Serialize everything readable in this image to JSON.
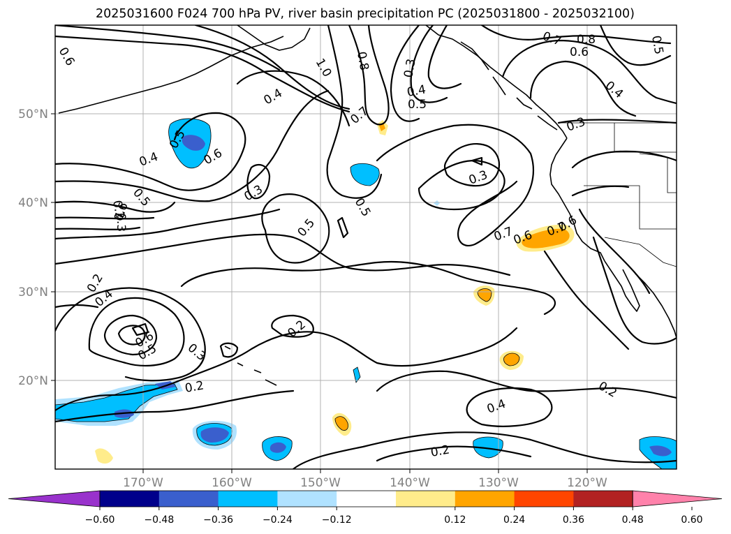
{
  "title": "2025031600 F024 700 hPa PV, river basin precipitation PC (2025031800 - 2025032100)",
  "map": {
    "lon_range": [
      -180,
      -110
    ],
    "lat_range": [
      10,
      60
    ],
    "lon_labels": [
      "170°W",
      "160°W",
      "150°W",
      "140°W",
      "130°W",
      "120°W"
    ],
    "lat_labels": [
      "50°N",
      "40°N",
      "30°N",
      "20°N"
    ]
  },
  "contour_labels": [
    {
      "text": "0.6"
    },
    {
      "text": "0.8"
    },
    {
      "text": "1.0"
    },
    {
      "text": "0.3"
    },
    {
      "text": "0.4"
    },
    {
      "text": "0.5"
    },
    {
      "text": "0.7"
    },
    {
      "text": "0.7"
    },
    {
      "text": "0.8"
    },
    {
      "text": "0.6"
    },
    {
      "text": "0.5"
    },
    {
      "text": "0.4"
    },
    {
      "text": "0.4"
    },
    {
      "text": "0.5"
    },
    {
      "text": "0.6"
    },
    {
      "text": "0.4"
    },
    {
      "text": "0.3"
    },
    {
      "text": "0.5"
    },
    {
      "text": "0.2"
    },
    {
      "text": "0.3"
    },
    {
      "text": "0.5"
    },
    {
      "text": "0.6"
    },
    {
      "text": "0.5"
    },
    {
      "text": "0.7"
    },
    {
      "text": "0.6"
    },
    {
      "text": "0.7"
    },
    {
      "text": "0.6"
    },
    {
      "text": "0.3"
    },
    {
      "text": "0.3"
    },
    {
      "text": "0.4"
    },
    {
      "text": "0.2"
    },
    {
      "text": "0.6"
    },
    {
      "text": "0.5"
    },
    {
      "text": "0.3"
    },
    {
      "text": "0.2"
    },
    {
      "text": "0.2"
    },
    {
      "text": "0.4"
    },
    {
      "text": "0.2"
    },
    {
      "text": "0.2"
    }
  ],
  "colorbar": {
    "colors": [
      "#9932cc",
      "#00008b",
      "#3a5fcd",
      "#00bfff",
      "#b0e2ff",
      "#ffffff",
      "#ffec8b",
      "#ffa500",
      "#ff4500",
      "#b22222",
      "#ff82ab"
    ],
    "ticks": [
      "−0.60",
      "−0.48",
      "−0.36",
      "−0.24",
      "−0.12",
      "0.12",
      "0.24",
      "0.36",
      "0.48",
      "0.60"
    ]
  }
}
